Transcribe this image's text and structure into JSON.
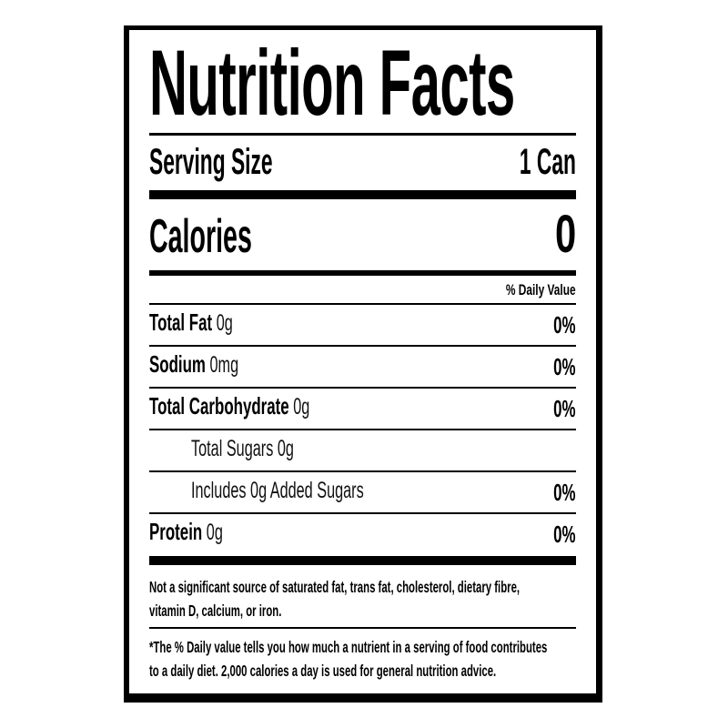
{
  "label": {
    "title": "Nutrition Facts",
    "serving": {
      "label": "Serving Size",
      "value": "1 Can"
    },
    "calories": {
      "label": "Calories",
      "value": "0"
    },
    "daily_value_header": "% Daily Value",
    "nutrients": [
      {
        "name": "Total Fat",
        "amount": "0g",
        "dv": "0%"
      },
      {
        "name": "Sodium",
        "amount": "0mg",
        "dv": "0%"
      },
      {
        "name": "Total Carbohydrate",
        "amount": "0g",
        "dv": "0%"
      },
      {
        "name": "Total Sugars",
        "amount": "0g",
        "dv": ""
      },
      {
        "name": "Includes 0g Added Sugars",
        "amount": "",
        "dv": "0%"
      },
      {
        "name": "Protein",
        "amount": "0g",
        "dv": "0%"
      }
    ],
    "footnotes": {
      "not_significant_lines": [
        "Not a significant source of saturated fat, trans fat, cholesterol, dietary fibre,",
        "vitamin D, calcium, or iron."
      ],
      "daily_value_lines": [
        "*The % Daily value tells you how much a nutrient in a serving of food contributes",
        "to a daily diet. 2,000 calories a day is used for general nutrition advice."
      ]
    },
    "colors": {
      "text": "#000000",
      "background": "#ffffff",
      "border": "#000000"
    }
  }
}
